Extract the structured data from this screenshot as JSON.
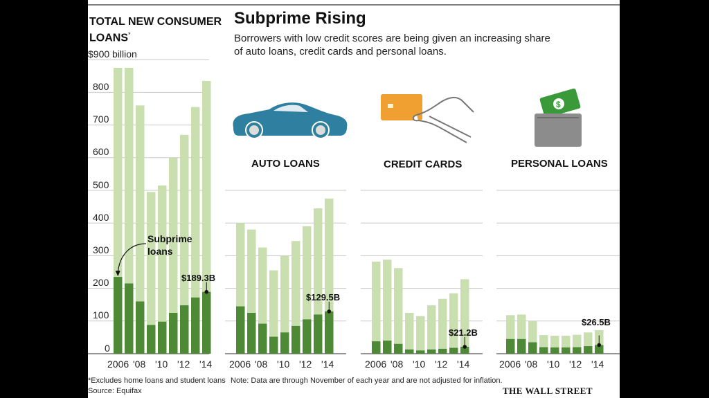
{
  "header": {
    "main_title_line1": "TOTAL NEW CONSUMER",
    "main_title_line2": "LOANS",
    "main_title_mark": "*",
    "title": "Subprime Rising",
    "subtitle_line1": "Borrowers with low credit scores are being given an increasing share",
    "subtitle_line2": "of auto loans, credit cards and personal loans."
  },
  "colors": {
    "total": "#c9dfb0",
    "subprime": "#4e8a36",
    "grid": "#c8c8c8",
    "car": "#2e7fa0",
    "card": "#f0a030",
    "cash": "#3a9a3a",
    "wallet": "#8c8c8c"
  },
  "annotations": {
    "subprime_label_line1": "Subprime",
    "subprime_label_line2": "loans"
  },
  "footer": {
    "footnote": "*Excludes home loans and student loans",
    "source": "Source: Equifax",
    "note": "Note: Data are through November of each year and are not adjusted for inflation.",
    "publisher": "THE WALL STREET JOURNAL"
  },
  "chart_data": [
    {
      "type": "bar",
      "id": "total",
      "title": "TOTAL NEW CONSUMER LOANS*",
      "unit_label": "$900 billion",
      "yticks": [
        900,
        800,
        700,
        600,
        500,
        400,
        300,
        200,
        100,
        0
      ],
      "ylim": [
        0,
        900
      ],
      "categories": [
        "2006",
        "2007",
        "2008",
        "2009",
        "2010",
        "2011",
        "2012",
        "2013",
        "2014"
      ],
      "xtick_labels": [
        "2006",
        "'08",
        "'10",
        "'12",
        "'14"
      ],
      "series": [
        {
          "name": "Total",
          "values": [
            875,
            875,
            760,
            495,
            515,
            600,
            670,
            755,
            835
          ]
        },
        {
          "name": "Subprime loans",
          "values": [
            235,
            215,
            160,
            88,
            98,
            125,
            148,
            172,
            189.3
          ]
        }
      ],
      "callout": "$189.3B"
    },
    {
      "type": "bar",
      "id": "auto",
      "title": "AUTO LOANS",
      "categories": [
        "2006",
        "2007",
        "2008",
        "2009",
        "2010",
        "2011",
        "2012",
        "2013",
        "2014"
      ],
      "xtick_labels": [
        "2006",
        "'08",
        "'10",
        "'12",
        "'14"
      ],
      "ylim": [
        0,
        900
      ],
      "series": [
        {
          "name": "Total",
          "values": [
            400,
            380,
            325,
            255,
            300,
            345,
            390,
            445,
            475
          ]
        },
        {
          "name": "Subprime",
          "values": [
            145,
            125,
            92,
            52,
            65,
            85,
            105,
            120,
            129.5
          ]
        }
      ],
      "callout": "$129.5B"
    },
    {
      "type": "bar",
      "id": "cards",
      "title": "CREDIT CARDS",
      "categories": [
        "2006",
        "2007",
        "2008",
        "2009",
        "2010",
        "2011",
        "2012",
        "2013",
        "2014"
      ],
      "xtick_labels": [
        "2006",
        "'08",
        "'10",
        "'12",
        "'14"
      ],
      "ylim": [
        0,
        900
      ],
      "series": [
        {
          "name": "Total",
          "values": [
            282,
            288,
            262,
            125,
            115,
            148,
            168,
            185,
            228
          ]
        },
        {
          "name": "Subprime",
          "values": [
            38,
            40,
            30,
            13,
            10,
            13,
            15,
            18,
            21.2
          ]
        }
      ],
      "callout": "$21.2B"
    },
    {
      "type": "bar",
      "id": "personal",
      "title": "PERSONAL LOANS",
      "categories": [
        "2006",
        "2007",
        "2008",
        "2009",
        "2010",
        "2011",
        "2012",
        "2013",
        "2014"
      ],
      "xtick_labels": [
        "2006",
        "'08",
        "'10",
        "'12",
        "'14"
      ],
      "ylim": [
        0,
        900
      ],
      "series": [
        {
          "name": "Total",
          "values": [
            118,
            120,
            100,
            57,
            55,
            55,
            58,
            65,
            72
          ]
        },
        {
          "name": "Subprime",
          "values": [
            45,
            45,
            35,
            20,
            19,
            19,
            20,
            23,
            26.5
          ]
        }
      ],
      "callout": "$26.5B"
    }
  ]
}
